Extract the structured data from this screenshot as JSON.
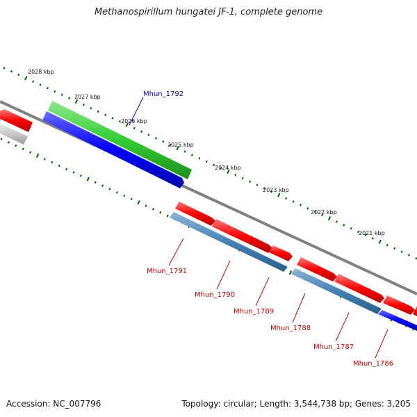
{
  "title": "Methanospirillum hungatei JF-1, complete genome",
  "footer": {
    "accession": "Accession: NC_007796",
    "summary": "Topology: circular; Length: 3,544,738 bp; Genes: 3,205"
  },
  "colors": {
    "forward_cds": "#ff0000",
    "reverse_cds": "#4682b4",
    "forward_gene": "#33cc33",
    "reverse_gene": "#0000ff",
    "other": "#c8c8c8",
    "backbone": "#808080",
    "tick": "#006400",
    "label_forward": "#cc0000",
    "label_reverse": "#0000cc"
  },
  "ticks": [
    {
      "label": "2028 kbp"
    },
    {
      "label": "2027 kbp"
    },
    {
      "label": "2026 kbp"
    },
    {
      "label": "2025 kbp"
    },
    {
      "label": "2024 kbp"
    },
    {
      "label": "2023 kbp"
    },
    {
      "label": "2022 kbp"
    },
    {
      "label": "2021 kbp"
    }
  ],
  "gene_labels": [
    {
      "id": "Mhun_1792",
      "color": "#0000cc"
    },
    {
      "id": "Mhun_1791",
      "color": "#cc0000"
    },
    {
      "id": "Mhun_1790",
      "color": "#cc0000"
    },
    {
      "id": "Mhun_1789",
      "color": "#cc0000"
    },
    {
      "id": "Mhun_1788",
      "color": "#cc0000"
    },
    {
      "id": "Mhun_1787",
      "color": "#cc0000"
    },
    {
      "id": "Mhun_1786",
      "color": "#cc0000"
    }
  ]
}
